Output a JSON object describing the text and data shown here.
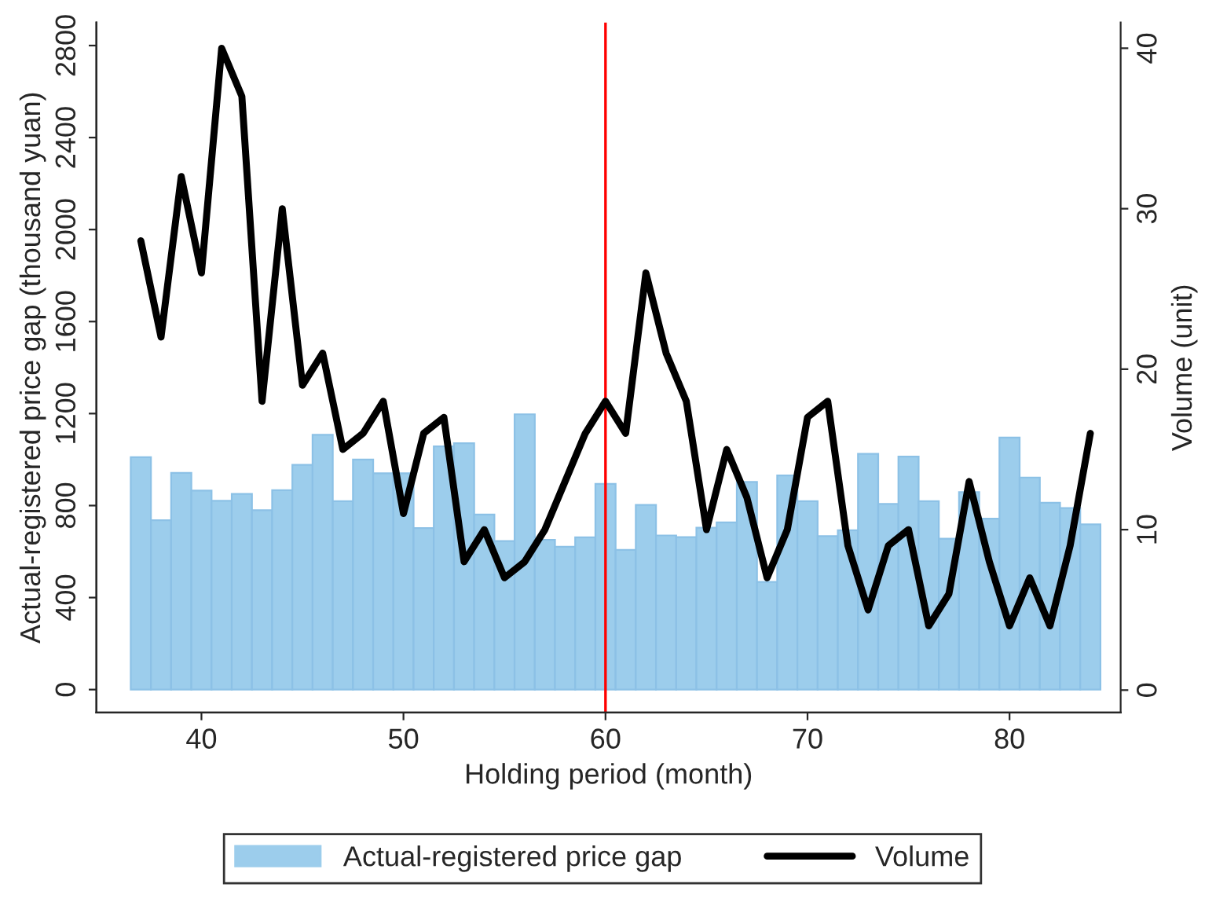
{
  "chart_data": {
    "type": "bar",
    "xlabel": "Holding period (month)",
    "ylabel": "Actual-registered price gap (thousand yuan)",
    "y2label": "Volume (unit)",
    "x": [
      37,
      38,
      39,
      40,
      41,
      42,
      43,
      44,
      45,
      46,
      47,
      48,
      49,
      50,
      51,
      52,
      53,
      54,
      55,
      56,
      57,
      58,
      59,
      60,
      61,
      62,
      63,
      64,
      65,
      66,
      67,
      68,
      69,
      70,
      71,
      72,
      73,
      74,
      75,
      76,
      77,
      78,
      79,
      80,
      81,
      82,
      83,
      84
    ],
    "series": [
      {
        "name": "Actual-registered price gap",
        "color": "#9ccdec",
        "values": [
          1010,
          736,
          942,
          865,
          821,
          851,
          780,
          867,
          977,
          1108,
          819,
          1000,
          940,
          940,
          702,
          1057,
          1071,
          761,
          646,
          1197,
          651,
          621,
          662,
          894,
          607,
          803,
          670,
          663,
          704,
          727,
          903,
          468,
          931,
          819,
          667,
          693,
          1025,
          807,
          1013,
          819,
          656,
          858,
          743,
          1096,
          922,
          812,
          789,
          718
        ]
      },
      {
        "name": "Volume",
        "type": "line",
        "axis": "y2",
        "color": "#000000",
        "values": [
          28,
          22,
          32,
          26,
          40,
          37,
          18,
          30,
          19,
          21,
          15,
          16,
          18,
          11,
          16,
          17,
          8,
          10,
          7,
          8,
          10,
          13,
          16,
          18,
          16,
          26,
          21,
          18,
          10,
          15,
          12,
          7,
          10,
          17,
          18,
          9,
          5,
          9,
          10,
          4,
          6,
          13,
          8,
          4,
          7,
          4,
          9,
          16
        ]
      }
    ],
    "xlim": [
      34.8,
      85.5
    ],
    "xticks": [
      40,
      50,
      60,
      70,
      80
    ],
    "ylim": [
      -100,
      2900
    ],
    "yticks": [
      0,
      400,
      800,
      1200,
      1600,
      2000,
      2400,
      2800
    ],
    "y2lim": [
      -1.4,
      41.6
    ],
    "y2ticks": [
      0,
      10,
      20,
      30,
      40
    ],
    "ref_lines": [
      {
        "axis": "x",
        "value": 60,
        "color": "#ff0000"
      }
    ],
    "grid": false,
    "legend": "bottom",
    "line_style": "solid",
    "marker": "none"
  }
}
